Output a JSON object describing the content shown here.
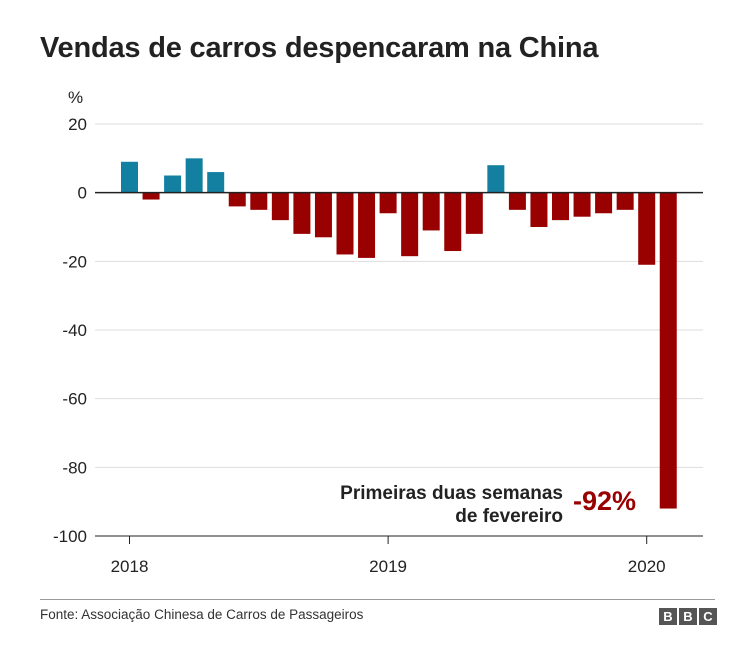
{
  "chart_data": {
    "type": "bar",
    "title": "Vendas de carros despencaram na China",
    "ylabel": "%",
    "ylim": [
      -100,
      20
    ],
    "yticks": [
      20,
      0,
      -20,
      -40,
      -60,
      -80,
      -100
    ],
    "xticks": [
      {
        "label": "2018",
        "index": 0
      },
      {
        "label": "2019",
        "index": 12
      },
      {
        "label": "2020",
        "index": 24
      }
    ],
    "grid": true,
    "series": [
      {
        "values": [
          9,
          -2,
          5,
          10,
          6,
          -4,
          -5,
          -8,
          -12,
          -13,
          -18,
          -19,
          -6,
          -18.5,
          -11,
          -17,
          -12,
          8,
          -5,
          -10,
          -8,
          -7,
          -6,
          -5,
          -21,
          -92
        ],
        "colors": [
          "#1380a1",
          "#990000",
          "#1380a1",
          "#1380a1",
          "#1380a1",
          "#990000",
          "#990000",
          "#990000",
          "#990000",
          "#990000",
          "#990000",
          "#990000",
          "#990000",
          "#990000",
          "#990000",
          "#990000",
          "#990000",
          "#1380a1",
          "#990000",
          "#990000",
          "#990000",
          "#990000",
          "#990000",
          "#990000",
          "#990000",
          "#990000"
        ]
      }
    ],
    "annotation": {
      "text_line1": "Primeiras duas semanas",
      "text_line2": "de fevereiro",
      "value_label": "-92%"
    }
  },
  "colors": {
    "positive": "#1380a1",
    "negative": "#990000",
    "grid": "#dddddd",
    "zero_line": "#222222"
  },
  "footer": {
    "source": "Fonte: Associação Chinesa de Carros de Passageiros",
    "logo_letters": [
      "B",
      "B",
      "C"
    ]
  }
}
